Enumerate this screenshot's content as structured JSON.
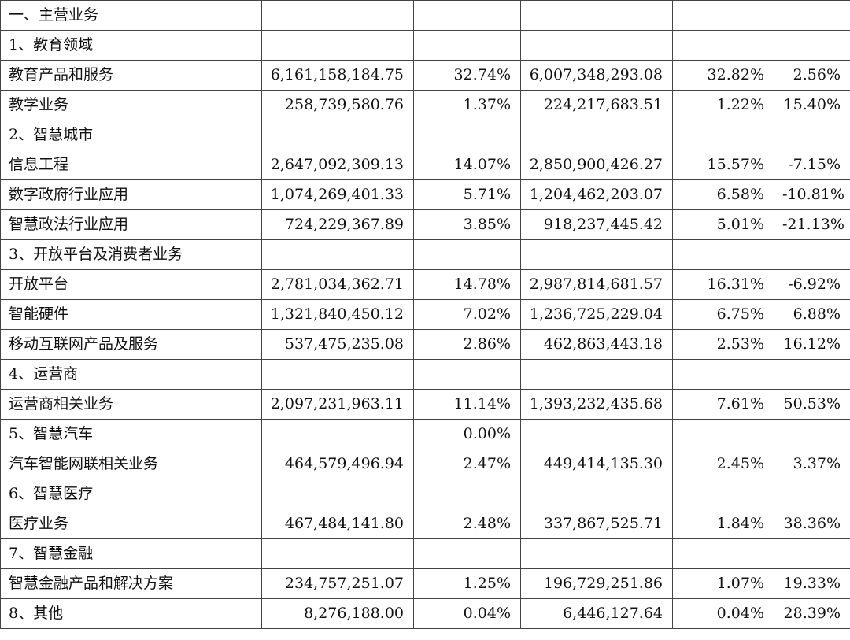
{
  "rows": [
    {
      "label": "一、主营业务",
      "v1": "",
      "v2": "",
      "v3": "",
      "v4": "",
      "v5": ""
    },
    {
      "label": "1、教育领域",
      "v1": "",
      "v2": "",
      "v3": "",
      "v4": "",
      "v5": ""
    },
    {
      "label": "教育产品和服务",
      "v1": "6,161,158,184.75",
      "v2": "32.74%",
      "v3": "6,007,348,293.08",
      "v4": "32.82%",
      "v5": "2.56%"
    },
    {
      "label": "教学业务",
      "v1": "258,739,580.76",
      "v2": "1.37%",
      "v3": "224,217,683.51",
      "v4": "1.22%",
      "v5": "15.40%"
    },
    {
      "label": "2、智慧城市",
      "v1": "",
      "v2": "",
      "v3": "",
      "v4": "",
      "v5": ""
    },
    {
      "label": "信息工程",
      "v1": "2,647,092,309.13",
      "v2": "14.07%",
      "v3": "2,850,900,426.27",
      "v4": "15.57%",
      "v5": "-7.15%"
    },
    {
      "label": "数字政府行业应用",
      "v1": "1,074,269,401.33",
      "v2": "5.71%",
      "v3": "1,204,462,203.07",
      "v4": "6.58%",
      "v5": "-10.81%"
    },
    {
      "label": "智慧政法行业应用",
      "v1": "724,229,367.89",
      "v2": "3.85%",
      "v3": "918,237,445.42",
      "v4": "5.01%",
      "v5": "-21.13%"
    },
    {
      "label": "3、开放平台及消费者业务",
      "v1": "",
      "v2": "",
      "v3": "",
      "v4": "",
      "v5": ""
    },
    {
      "label": "开放平台",
      "v1": "2,781,034,362.71",
      "v2": "14.78%",
      "v3": "2,987,814,681.57",
      "v4": "16.31%",
      "v5": "-6.92%"
    },
    {
      "label": "智能硬件",
      "v1": "1,321,840,450.12",
      "v2": "7.02%",
      "v3": "1,236,725,229.04",
      "v4": "6.75%",
      "v5": "6.88%"
    },
    {
      "label": "移动互联网产品及服务",
      "v1": "537,475,235.08",
      "v2": "2.86%",
      "v3": "462,863,443.18",
      "v4": "2.53%",
      "v5": "16.12%"
    },
    {
      "label": "4、运营商",
      "v1": "",
      "v2": "",
      "v3": "",
      "v4": "",
      "v5": ""
    },
    {
      "label": "运营商相关业务",
      "v1": "2,097,231,963.11",
      "v2": "11.14%",
      "v3": "1,393,232,435.68",
      "v4": "7.61%",
      "v5": "50.53%"
    },
    {
      "label": "5、智慧汽车",
      "v1": "",
      "v2": "0.00%",
      "v3": "",
      "v4": "",
      "v5": ""
    },
    {
      "label": "汽车智能网联相关业务",
      "v1": "464,579,496.94",
      "v2": "2.47%",
      "v3": "449,414,135.30",
      "v4": "2.45%",
      "v5": "3.37%"
    },
    {
      "label": "6、智慧医疗",
      "v1": "",
      "v2": "",
      "v3": "",
      "v4": "",
      "v5": ""
    },
    {
      "label": "医疗业务",
      "v1": "467,484,141.80",
      "v2": "2.48%",
      "v3": "337,867,525.71",
      "v4": "1.84%",
      "v5": "38.36%"
    },
    {
      "label": "7、智慧金融",
      "v1": "",
      "v2": "",
      "v3": "",
      "v4": "",
      "v5": ""
    },
    {
      "label": "智慧金融产品和解决方案",
      "v1": "234,757,251.07",
      "v2": "1.25%",
      "v3": "196,729,251.86",
      "v4": "1.07%",
      "v5": "19.33%"
    },
    {
      "label": "8、其他",
      "v1": "8,276,188.00",
      "v2": "0.04%",
      "v3": "6,446,127.64",
      "v4": "0.04%",
      "v5": "28.39%"
    }
  ]
}
